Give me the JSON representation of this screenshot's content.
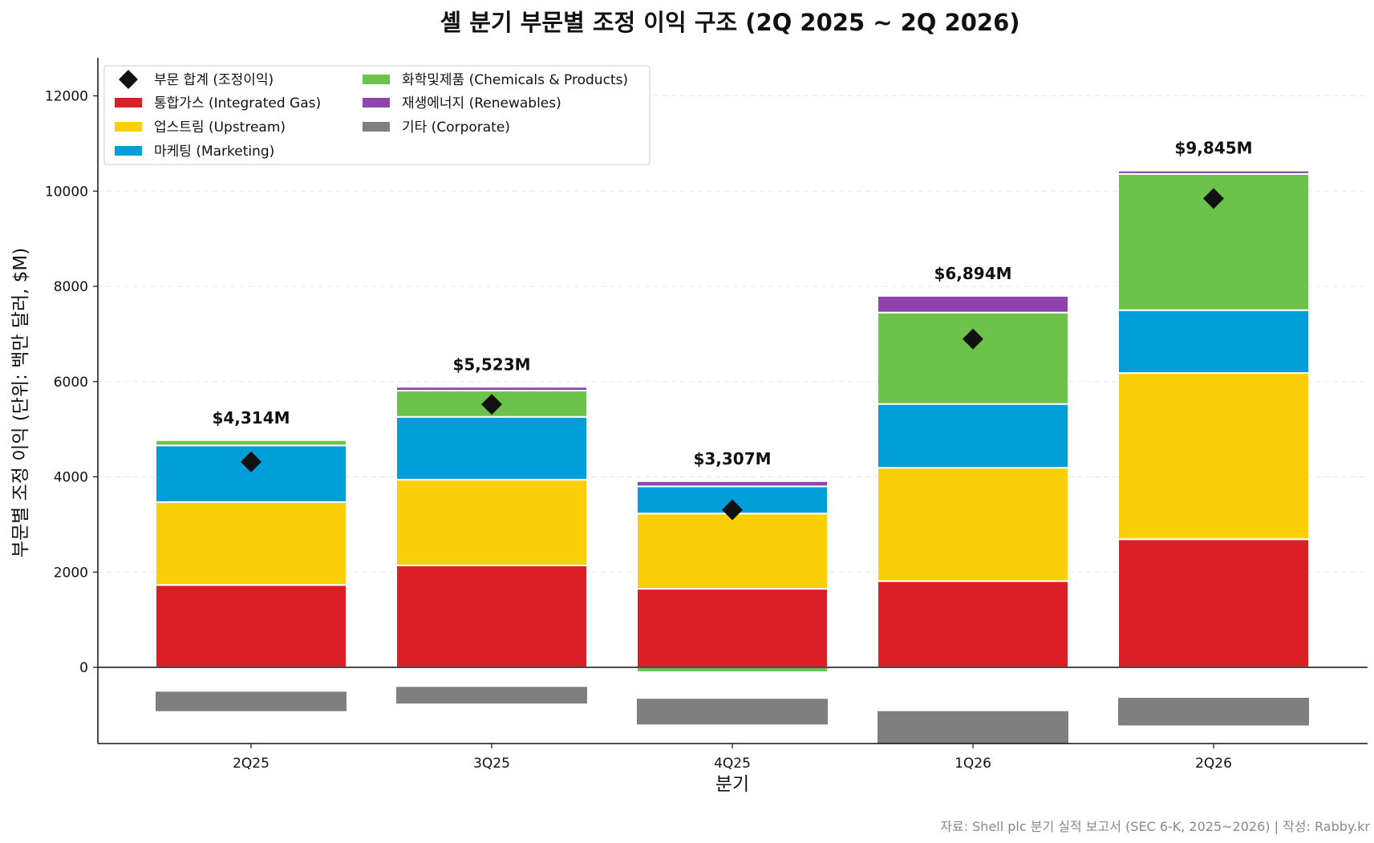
{
  "chart_data": {
    "type": "bar",
    "stacked": true,
    "title": "셸 분기 부문별 조정 이익 구조 (2Q 2025 ~ 2Q 2026)",
    "xlabel": "분기",
    "ylabel": "부문별 조정 이익 (단위: 백만 달러, $M)",
    "source": "자료: Shell plc 분기 실적 보고서 (SEC 6-K, 2025~2026) | 작성: Rabby.kr",
    "categories": [
      "2Q25",
      "3Q25",
      "4Q25",
      "1Q26",
      "2Q26"
    ],
    "ylim": [
      -1600,
      12800
    ],
    "yticks": [
      0,
      2000,
      4000,
      6000,
      8000,
      10000,
      12000
    ],
    "grid": "horizontal dashed",
    "legend_position": "top-left",
    "series": [
      {
        "name": "통합가스 (Integrated Gas)",
        "color": "#dc1f26",
        "values": [
          1730,
          2140,
          1650,
          1810,
          2690
        ]
      },
      {
        "name": "업스트림 (Upstream)",
        "color": "#fbcf07",
        "values": [
          1740,
          1800,
          1580,
          2380,
          3490
        ]
      },
      {
        "name": "마케팅 (Marketing)",
        "color": "#009ed9",
        "values": [
          1190,
          1320,
          570,
          1340,
          1320
        ]
      },
      {
        "name": "화학및제품 (Chemicals & Products)",
        "color": "#6cc24a",
        "values": [
          110,
          550,
          -100,
          1920,
          2860
        ]
      },
      {
        "name": "재생에너지 (Renewables)",
        "color": "#8e44ad",
        "values": [
          0,
          80,
          110,
          350,
          70
        ]
      },
      {
        "name": "기타 (Corporate)",
        "color": "#7f7f7f",
        "ranges": [
          [
            -920,
            -510
          ],
          [
            -760,
            -410
          ],
          [
            -1200,
            -660
          ],
          [
            -1600,
            -920
          ],
          [
            -1220,
            -640
          ]
        ]
      }
    ],
    "totals": {
      "name": "부문 합계 (조정이익)",
      "marker_color": "#111111",
      "values": [
        4314,
        5523,
        3307,
        6894,
        9845
      ],
      "labels": [
        "$4,314M",
        "$5,523M",
        "$3,307M",
        "$6,894M",
        "$9,845M"
      ]
    }
  }
}
